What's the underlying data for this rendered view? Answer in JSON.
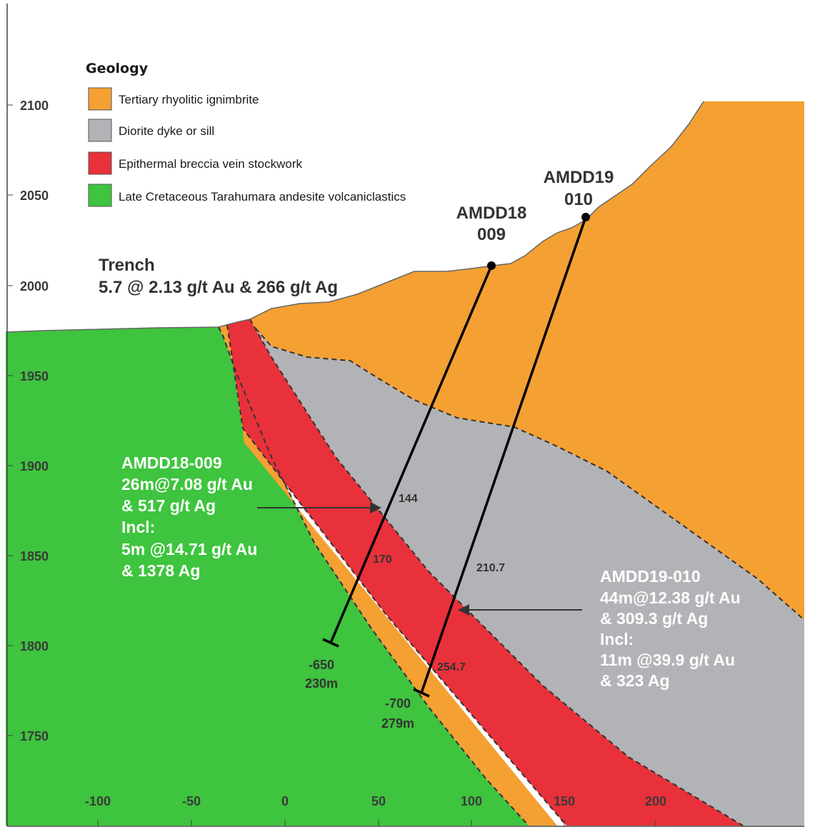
{
  "legend": {
    "title": "Geology",
    "items": [
      {
        "label": "Tertiary rhyolitic ignimbrite",
        "color": "#f5a033"
      },
      {
        "label": "Diorite dyke or sill",
        "color": "#b2b3b6"
      },
      {
        "label": "Epithermal breccia vein stockwork",
        "color": "#e8313a"
      },
      {
        "label": "Late Cretaceous Tarahumara andesite volcaniclastics",
        "color": "#3ec43e"
      }
    ]
  },
  "colors": {
    "ignimbrite": "#f5a033",
    "diorite": "#b2b3b6",
    "breccia": "#e8313a",
    "andesite": "#3ec43e",
    "drill_line": "#000000",
    "contact_dash": "#333333"
  },
  "axes": {
    "y_ticks": [
      "2100",
      "2050",
      "2000",
      "1950",
      "1900",
      "1850",
      "1800",
      "1750"
    ],
    "x_ticks": [
      "-100",
      "-50",
      "0",
      "50",
      "100",
      "150",
      "200"
    ]
  },
  "trench": {
    "line1": "Trench",
    "line2": "5.7 @ 2.13 g/t Au & 266 g/t Ag"
  },
  "holes": [
    {
      "name_line1": "AMDD18",
      "name_line2": "009",
      "end_line1": "-650",
      "end_line2": "230m",
      "intercept_from": "144",
      "intercept_to": "170",
      "annotation": [
        "AMDD18-009",
        "26m@7.08 g/t Au",
        "& 517 g/t Ag",
        "Incl:",
        "5m @14.71 g/t Au",
        "& 1378 Ag"
      ]
    },
    {
      "name_line1": "AMDD19",
      "name_line2": "010",
      "end_line1": "-700",
      "end_line2": "279m",
      "intercept_from": "210.7",
      "intercept_to": "254.7",
      "annotation": [
        "AMDD19-010",
        "44m@12.38 g/t Au",
        "& 309.3 g/t Ag",
        "Incl:",
        "11m @39.9 g/t Au",
        "& 323 Ag"
      ]
    }
  ]
}
